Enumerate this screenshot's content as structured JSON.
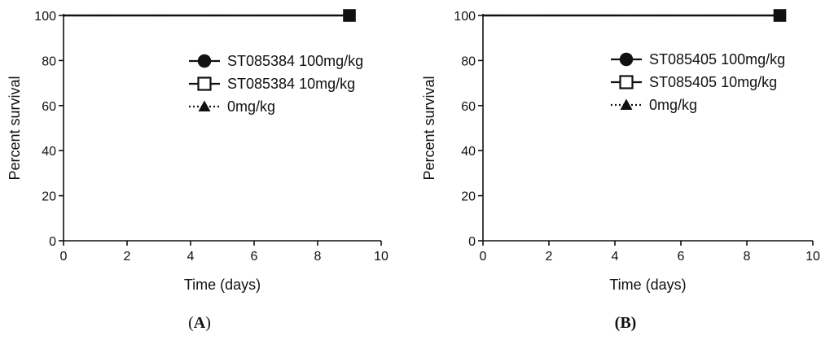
{
  "chart_data": [
    {
      "type": "line",
      "panel_label": "A",
      "xlabel": "Time (days)",
      "ylabel": "Percent survival",
      "xlim": [
        0,
        10
      ],
      "ylim": [
        0,
        100
      ],
      "xticks": [
        0,
        2,
        4,
        6,
        8,
        10
      ],
      "yticks": [
        0,
        20,
        40,
        60,
        80,
        100
      ],
      "legend_position": "right",
      "series": [
        {
          "name": "ST085384 100mg/kg",
          "marker": "filled-circle",
          "line": "solid",
          "x": [
            0,
            9
          ],
          "y": [
            100,
            100
          ]
        },
        {
          "name": "ST085384 10mg/kg",
          "marker": "open-square",
          "line": "solid",
          "x": [
            0,
            9
          ],
          "y": [
            100,
            100
          ]
        },
        {
          "name": "0mg/kg",
          "marker": "filled-triangle",
          "line": "dotted",
          "x": [
            0,
            9
          ],
          "y": [
            100,
            100
          ]
        }
      ]
    },
    {
      "type": "line",
      "panel_label": "B",
      "xlabel": "Time (days)",
      "ylabel": "Percent survival",
      "xlim": [
        0,
        10
      ],
      "ylim": [
        0,
        100
      ],
      "xticks": [
        0,
        2,
        4,
        6,
        8,
        10
      ],
      "yticks": [
        0,
        20,
        40,
        60,
        80,
        100
      ],
      "legend_position": "right",
      "series": [
        {
          "name": "ST085405 100mg/kg",
          "marker": "filled-circle",
          "line": "solid",
          "x": [
            0,
            9
          ],
          "y": [
            100,
            100
          ]
        },
        {
          "name": "ST085405 10mg/kg",
          "marker": "open-square",
          "line": "solid",
          "x": [
            0,
            9
          ],
          "y": [
            100,
            100
          ]
        },
        {
          "name": "0mg/kg",
          "marker": "filled-triangle",
          "line": "dotted",
          "x": [
            0,
            9
          ],
          "y": [
            100,
            100
          ]
        }
      ]
    }
  ]
}
